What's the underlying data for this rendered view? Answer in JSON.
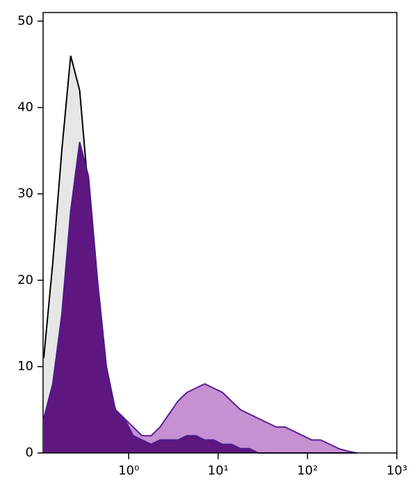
{
  "chart_data": {
    "type": "area",
    "xscale": "log",
    "x": [
      0.112,
      0.141,
      0.178,
      0.224,
      0.282,
      0.355,
      0.447,
      0.562,
      0.708,
      0.891,
      1.12,
      1.41,
      1.78,
      2.24,
      2.82,
      3.55,
      4.47,
      5.62,
      7.08,
      8.91,
      11.2,
      14.1,
      17.8,
      22.4,
      28.2,
      35.5,
      44.7,
      56.2,
      70.8,
      89.1,
      112,
      141,
      178,
      224,
      282,
      355
    ],
    "series": [
      {
        "color": "#000000",
        "fill": "#e6e6e6",
        "values": [
          11,
          22,
          35,
          46,
          42,
          30,
          16,
          8,
          5,
          4,
          2,
          1.5,
          1,
          1,
          1,
          1,
          1,
          1,
          1,
          1,
          1,
          0.5,
          0.5,
          0.3,
          0,
          0,
          0,
          0,
          0,
          0,
          0,
          0,
          0,
          0,
          0,
          0
        ]
      },
      {
        "color": "#5b1f91",
        "fill": "#c690d2",
        "values": [
          4,
          7,
          14,
          25,
          33,
          29,
          18,
          9,
          5,
          4,
          3,
          2,
          2,
          3,
          4.5,
          6,
          7,
          7.5,
          8,
          7.5,
          7,
          6,
          5,
          4.5,
          4,
          3.5,
          3,
          3,
          2.5,
          2,
          1.5,
          1.5,
          1,
          0.5,
          0.2,
          0
        ]
      },
      {
        "color": "#4b1a8a",
        "fill": "#5e1780",
        "values": [
          4,
          8,
          16,
          28,
          36,
          32,
          20,
          10,
          5,
          4,
          2,
          1.5,
          1,
          1.5,
          1.5,
          1.5,
          2,
          2,
          1.5,
          1.5,
          1,
          1,
          0.5,
          0.5,
          0,
          0,
          0,
          0,
          0,
          0,
          0,
          0,
          0,
          0,
          0,
          0
        ]
      }
    ],
    "xlim": [
      0.11,
      1000
    ],
    "xticks": [
      {
        "value": 1,
        "label": "10⁰"
      },
      {
        "value": 10,
        "label": "10¹"
      },
      {
        "value": 100,
        "label": "10²"
      },
      {
        "value": 1000,
        "label": "10³"
      }
    ],
    "ylim": [
      0,
      51
    ],
    "yticks": [
      0,
      10,
      20,
      30,
      40,
      50
    ]
  }
}
